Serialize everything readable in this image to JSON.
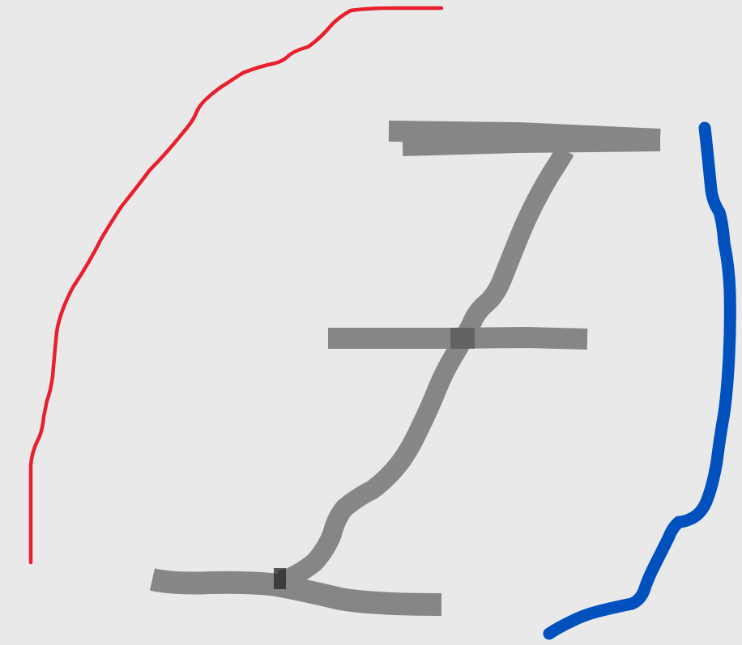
{
  "canvas": {
    "background": "#e9e9e9"
  },
  "strokes": [
    {
      "name": "red-arc-stroke",
      "color": "#e8202e",
      "opacity": 1.0,
      "kind": "pen"
    },
    {
      "name": "blue-arc-stroke",
      "color": "#0051be",
      "opacity": 1.0,
      "kind": "pen"
    },
    {
      "name": "gray-top-bar-stroke",
      "color": "#666666",
      "opacity": 0.75,
      "kind": "highlighter"
    },
    {
      "name": "gray-middle-bar-stroke",
      "color": "#666666",
      "opacity": 0.75,
      "kind": "highlighter"
    },
    {
      "name": "gray-diagonal-stroke",
      "color": "#666666",
      "opacity": 0.75,
      "kind": "highlighter"
    },
    {
      "name": "gray-bottom-bar-stroke",
      "color": "#666666",
      "opacity": 0.75,
      "kind": "highlighter"
    }
  ]
}
